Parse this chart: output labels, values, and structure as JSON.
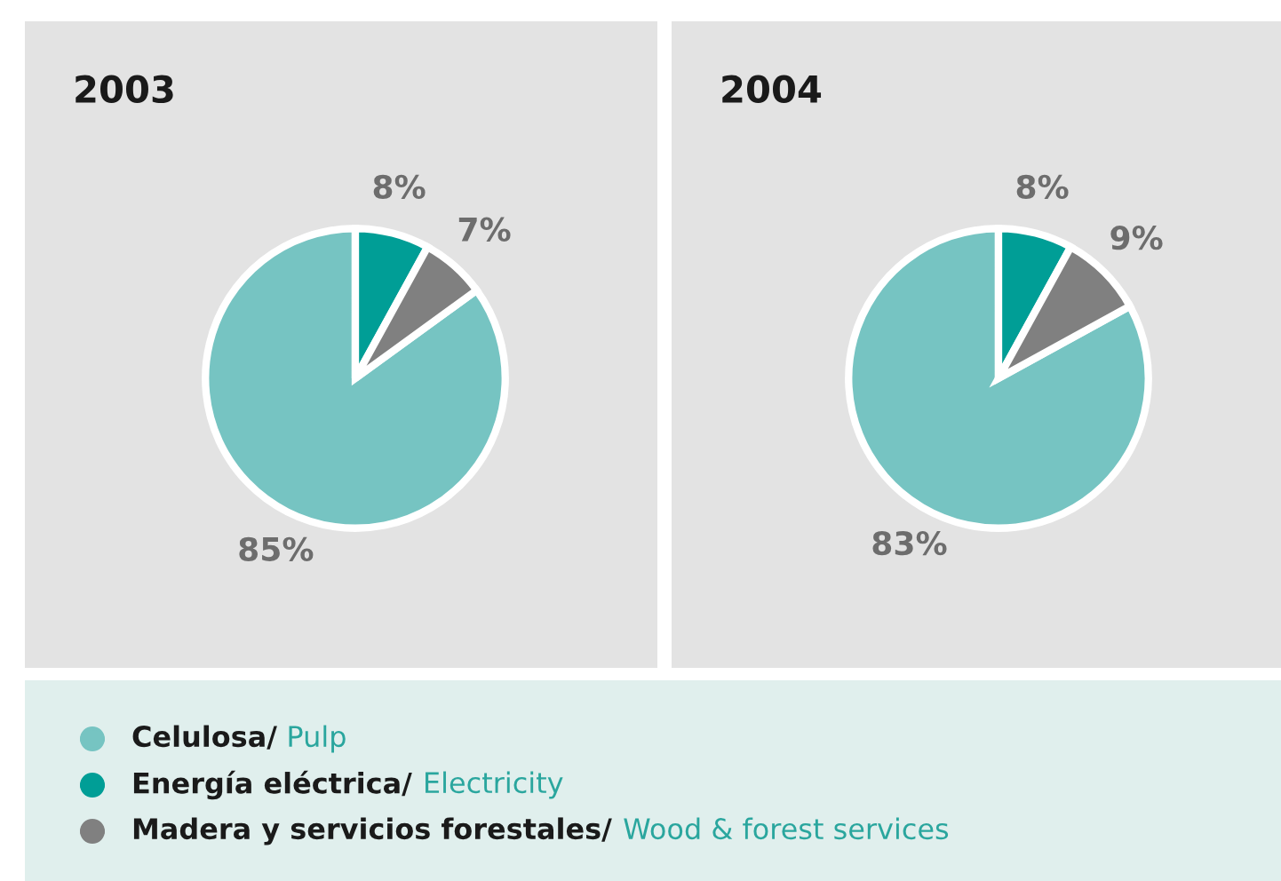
{
  "chart_data": [
    {
      "type": "pie",
      "title": "2003",
      "categories": [
        "Celulosa/ Pulp",
        "Energía eléctrica/ Electricity",
        "Madera y servicios forestales/ Wood & forest services"
      ],
      "values": [
        85,
        8,
        7
      ],
      "colors": [
        "#76c4c2",
        "#009e96",
        "#808080"
      ],
      "value_labels": [
        "85%",
        "8%",
        "7%"
      ],
      "legend": "bottom"
    },
    {
      "type": "pie",
      "title": "2004",
      "values": [
        83,
        8,
        9
      ],
      "colors": [
        "#76c4c2",
        "#009e96",
        "#808080"
      ],
      "value_labels": [
        "83%",
        "8%",
        "9%"
      ]
    }
  ]
}
